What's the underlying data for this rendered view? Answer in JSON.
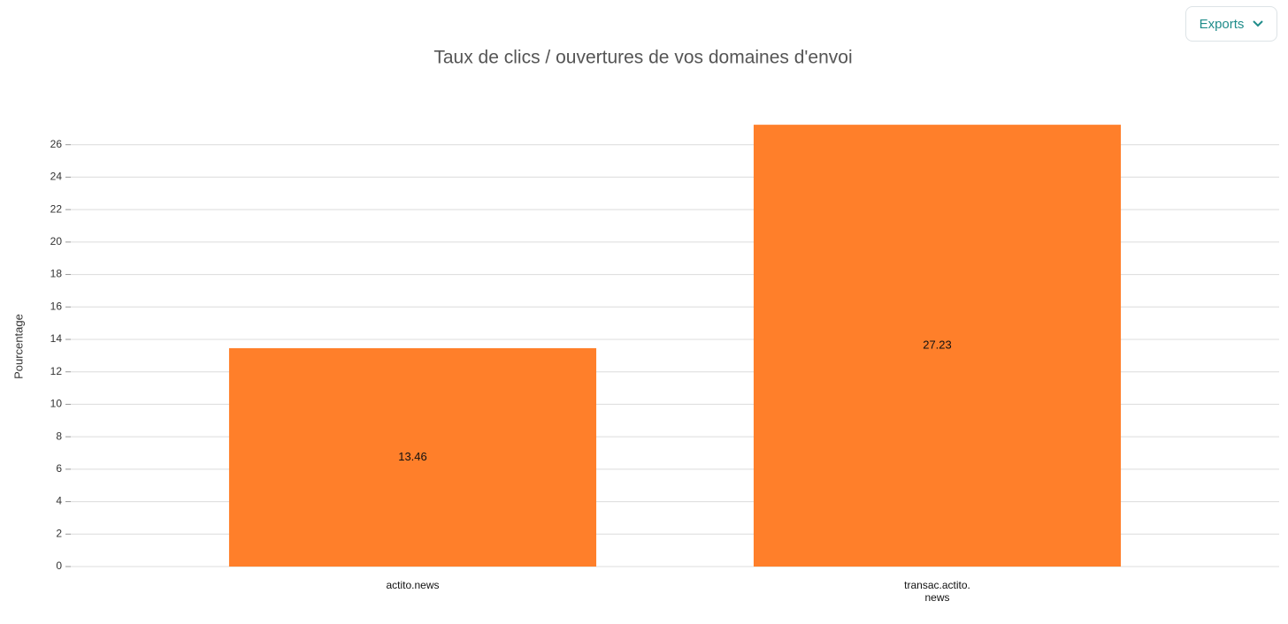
{
  "export_button": "Exports",
  "chart_data": {
    "type": "bar",
    "title": "Taux de clics / ouvertures de vos domaines d'envoi",
    "y_label": "Pourcentage",
    "categories": [
      "actito.news",
      "transac.actito.news"
    ],
    "values": [
      13.46,
      27.23
    ],
    "color": "#ff7f2a",
    "ylim": [
      0,
      28
    ],
    "yticks": [
      0,
      2,
      4,
      6,
      8,
      10,
      12,
      14,
      16,
      18,
      20,
      22,
      24,
      26
    ],
    "grid": true
  }
}
